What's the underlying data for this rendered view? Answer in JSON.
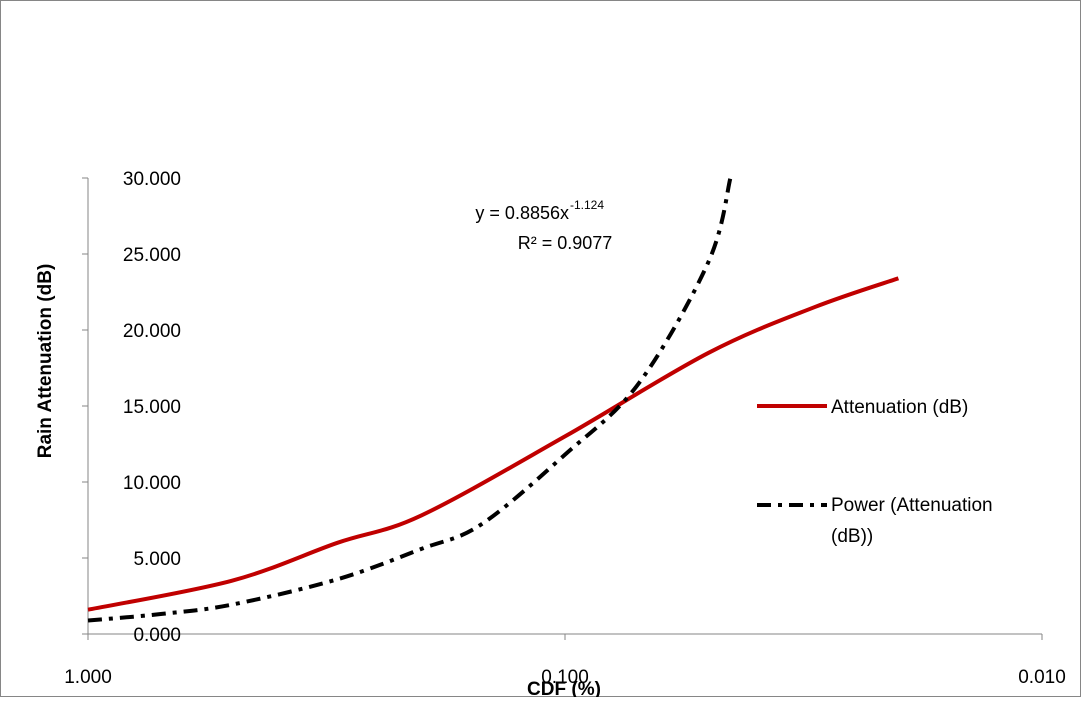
{
  "chart_data": {
    "type": "line",
    "title": "",
    "xlabel": "CDF (%)",
    "ylabel": "Rain Attenuation (dB)",
    "x_scale": "log",
    "x_reversed": true,
    "xlim": [
      1.0,
      0.01
    ],
    "ylim": [
      0,
      30
    ],
    "x_ticks": [
      1.0,
      0.1,
      0.01
    ],
    "x_tick_labels": [
      "1.000",
      "0.100",
      "0.010"
    ],
    "y_ticks": [
      0,
      5,
      10,
      15,
      20,
      25,
      30
    ],
    "y_tick_labels": [
      "0.000",
      "5.000",
      "10.000",
      "15.000",
      "20.000",
      "25.000",
      "30.000"
    ],
    "grid": false,
    "legend_position": "right",
    "series": [
      {
        "name": "Attenuation (dB)",
        "style": "solid",
        "color": "#C00000",
        "x": [
          1.0,
          0.5,
          0.3,
          0.2,
          0.1,
          0.05,
          0.03,
          0.02
        ],
        "y": [
          1.6,
          3.5,
          6.0,
          7.8,
          13.0,
          18.5,
          21.5,
          23.4
        ]
      },
      {
        "name": "Power (Attenuation (dB))",
        "style": "dashdot",
        "color": "#000000",
        "x": [
          1.0,
          0.7,
          0.5,
          0.3,
          0.2,
          0.15,
          0.1,
          0.07,
          0.05,
          0.045
        ],
        "y": [
          0.89,
          1.32,
          1.93,
          3.6,
          5.6,
          7.2,
          11.8,
          16.5,
          24.5,
          30.0
        ]
      }
    ],
    "annotations": {
      "equation_prefix": "y = 0.8856x",
      "equation_exponent": "-1.124",
      "r_squared": "R² = 0.9077"
    }
  }
}
